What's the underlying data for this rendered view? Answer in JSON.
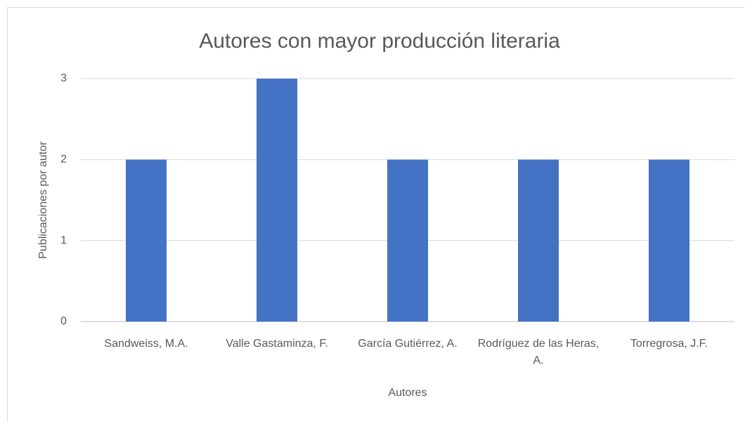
{
  "chart_data": {
    "type": "bar",
    "title": "Autores con mayor producción literaria",
    "x_label": "Autores",
    "y_label": "Publicaciones por autor",
    "categories": [
      "Sandweiss, M.A.",
      "Valle Gastaminza, F.",
      "García Gutiérrez, A.",
      "Rodríguez de las Heras, A.",
      "Torregrosa, J.F."
    ],
    "values": [
      2,
      3,
      2,
      2,
      2
    ],
    "color": "#4472c4",
    "ylim": [
      0,
      3
    ],
    "yticks": [
      0,
      1,
      2,
      3
    ],
    "grid": true
  }
}
